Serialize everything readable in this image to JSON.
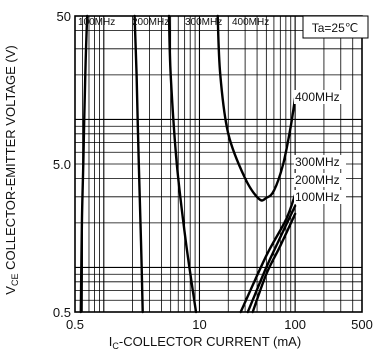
{
  "chart_data": {
    "type": "line",
    "x_scale": "log",
    "y_scale": "log",
    "xlim": [
      0.5,
      500
    ],
    "ylim": [
      0.5,
      50
    ],
    "x_ticks": [
      {
        "value": 0.5,
        "label": "0.5"
      },
      {
        "value": 10,
        "label": "10"
      },
      {
        "value": 100,
        "label": "100"
      },
      {
        "value": 500,
        "label": "500"
      }
    ],
    "y_ticks": [
      {
        "value": 0.5,
        "label": "0.5"
      },
      {
        "value": 5,
        "label": "5.0"
      },
      {
        "value": 50,
        "label": "50"
      }
    ],
    "xlabel": {
      "prefix": "I",
      "sub": "C",
      "rest": "-COLLECTOR  CURRENT  (mA)"
    },
    "ylabel": {
      "prefix": "V",
      "sub": "CE",
      "rest": " COLLECTOR-EMITTER VOLTAGE  (V)"
    },
    "condition": "Ta=25℃",
    "grid": true,
    "series": [
      {
        "name": "100MHz",
        "label_top": "100MHz",
        "label_right": "100MHz",
        "left": [
          [
            0.67,
            50
          ],
          [
            0.64,
            20
          ],
          [
            0.61,
            5
          ],
          [
            0.59,
            2
          ],
          [
            0.575,
            0.5
          ]
        ],
        "right": [
          [
            36,
            0.5
          ],
          [
            50,
            0.9
          ],
          [
            70,
            1.4
          ],
          [
            100,
            2.3
          ]
        ]
      },
      {
        "name": "200MHz",
        "label_top": "200MHz",
        "label_right": "200MHz",
        "left": [
          [
            2.1,
            50
          ],
          [
            2.2,
            20
          ],
          [
            2.32,
            5
          ],
          [
            2.45,
            1.5
          ],
          [
            2.55,
            0.5
          ]
        ],
        "right": [
          [
            32,
            0.5
          ],
          [
            50,
            1.0
          ],
          [
            70,
            1.6
          ],
          [
            100,
            2.6
          ]
        ]
      },
      {
        "name": "300MHz",
        "label_top": "300MHz",
        "label_right": "300MHz",
        "left": [
          [
            4.8,
            50
          ],
          [
            5.0,
            20
          ],
          [
            5.8,
            5
          ],
          [
            7.2,
            1.5
          ],
          [
            9.2,
            0.5
          ]
        ],
        "right": [
          [
            27,
            0.5
          ],
          [
            50,
            1.2
          ],
          [
            80,
            2.1
          ],
          [
            100,
            3.1
          ]
        ]
      },
      {
        "name": "400MHz",
        "label_top": "400MHz",
        "label_right": "400MHz",
        "left": [
          [
            15.5,
            50
          ],
          [
            16.5,
            20
          ],
          [
            20,
            8
          ],
          [
            30,
            4
          ],
          [
            42,
            2.9
          ],
          [
            50,
            2.95
          ]
        ],
        "right": [
          [
            50,
            2.95
          ],
          [
            60,
            3.3
          ],
          [
            75,
            5
          ],
          [
            90,
            9
          ],
          [
            100,
            14
          ]
        ]
      }
    ]
  }
}
